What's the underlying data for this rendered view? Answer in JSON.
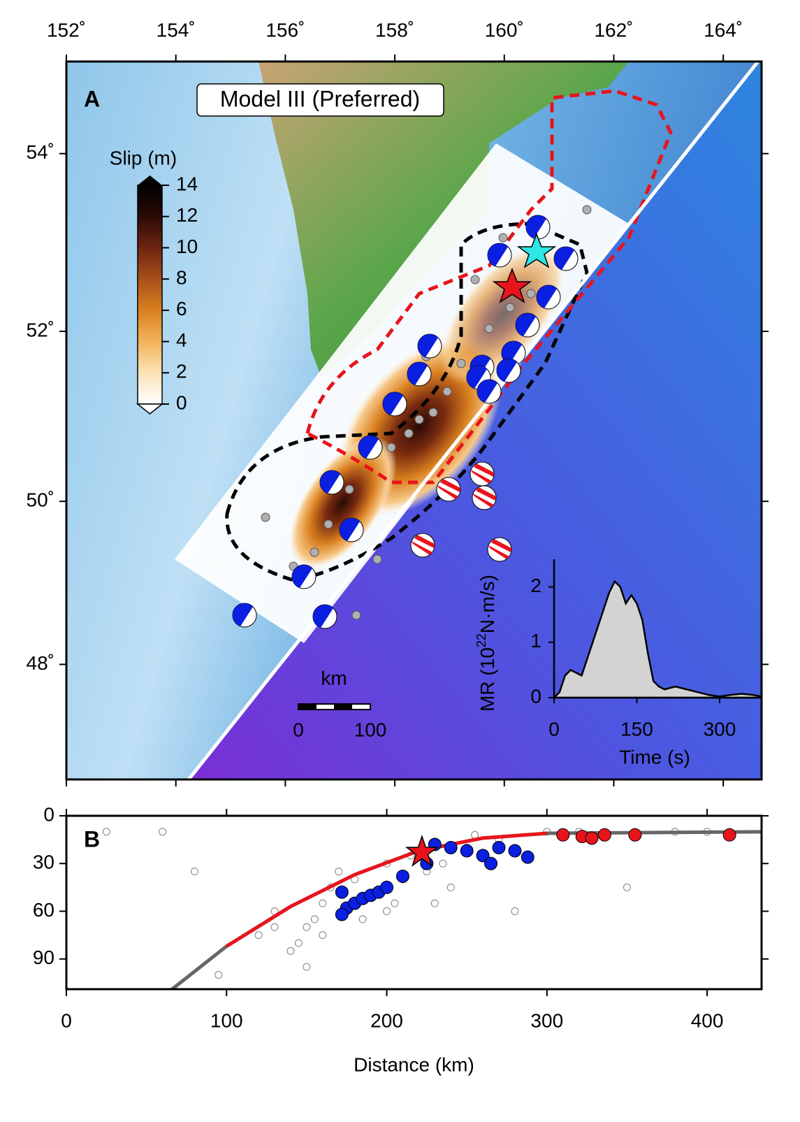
{
  "map": {
    "panel_label": "A",
    "title": "Model III (Preferred)",
    "lonlim": [
      152,
      164.7
    ],
    "latlim": [
      46.54,
      55.0
    ],
    "lon_ticks": [
      {
        "value": 152,
        "label": "152˚"
      },
      {
        "value": 154,
        "label": "154˚"
      },
      {
        "value": 156,
        "label": "156˚"
      },
      {
        "value": 158,
        "label": "158˚"
      },
      {
        "value": 160,
        "label": "160˚"
      },
      {
        "value": 162,
        "label": "162˚"
      },
      {
        "value": 164,
        "label": "164˚"
      }
    ],
    "lat_ticks": [
      {
        "value": 48,
        "label": "48˚"
      },
      {
        "value": 50,
        "label": "50˚"
      },
      {
        "value": 52,
        "label": "52˚"
      },
      {
        "value": 54,
        "label": "54˚"
      }
    ]
  },
  "colorbar": {
    "title": "Slip (m)",
    "lim": [
      0,
      14
    ],
    "ticks": [
      0,
      2,
      4,
      6,
      8,
      10,
      12,
      14
    ],
    "colors": [
      "#ffffff",
      "#fbe3b8",
      "#f3b35a",
      "#d9801f",
      "#a8501a",
      "#6e2410",
      "#2a0a05",
      "#000000"
    ]
  },
  "scale_bar": {
    "unit": "km",
    "ticks": [
      0,
      100
    ]
  },
  "chart_data": [
    {
      "type": "area",
      "color": "#d3d3d3",
      "x_label": "Time (s)",
      "y_label": [
        "MR (10",
        "22",
        "N·m/s)"
      ],
      "x": [
        0,
        10,
        20,
        30,
        40,
        50,
        60,
        70,
        80,
        90,
        100,
        110,
        120,
        130,
        140,
        150,
        160,
        170,
        180,
        190,
        200,
        220,
        240,
        260,
        280,
        300,
        320,
        340,
        360,
        376
      ],
      "values": [
        0,
        0.1,
        0.4,
        0.5,
        0.45,
        0.4,
        0.7,
        1.0,
        1.3,
        1.6,
        1.9,
        2.1,
        2.0,
        1.7,
        1.85,
        1.7,
        1.4,
        0.8,
        0.3,
        0.2,
        0.15,
        0.2,
        0.15,
        0.1,
        0.05,
        0.02,
        0.05,
        0.07,
        0.05,
        0.02
      ],
      "xlim": [
        0,
        376
      ],
      "ylim": [
        0,
        2.5
      ],
      "xticks": [
        0,
        150,
        300
      ],
      "yticks": [
        0,
        1,
        2
      ]
    },
    {
      "type": "scatter",
      "panel_label": "B",
      "x_label": "Distance (km)",
      "xlim": [
        0,
        434
      ],
      "ylim": [
        0,
        109
      ],
      "y_inverted": true,
      "xticks": [
        0,
        100,
        200,
        300,
        400
      ],
      "yticks": [
        0,
        30,
        60,
        90
      ],
      "series": [
        {
          "style": "open-circle",
          "color": "#808080",
          "x": [
            25,
            60,
            80,
            95,
            120,
            130,
            140,
            145,
            150,
            155,
            160,
            165,
            170,
            180,
            190,
            200,
            205,
            210,
            215,
            225,
            235,
            240,
            250,
            255,
            260,
            270,
            280,
            300,
            320,
            350,
            380,
            400,
            130,
            150,
            160,
            185,
            200,
            230
          ],
          "y": [
            10,
            10,
            35,
            100,
            75,
            70,
            85,
            80,
            95,
            65,
            55,
            45,
            35,
            40,
            50,
            30,
            55,
            40,
            25,
            35,
            30,
            45,
            20,
            12,
            25,
            15,
            60,
            10,
            10,
            45,
            10,
            10,
            60,
            70,
            75,
            65,
            60,
            55
          ]
        },
        {
          "style": "line",
          "color": "#666666",
          "x": [
            66,
            100,
            140,
            180,
            220,
            260,
            300,
            440
          ],
          "y": [
            109,
            82,
            57,
            37,
            22,
            14,
            11,
            10
          ]
        },
        {
          "style": "line",
          "color": "#e8141c",
          "x": [
            100,
            140,
            180,
            220,
            260,
            300
          ],
          "y": [
            82,
            57,
            37,
            22,
            14,
            11
          ]
        },
        {
          "style": "circle",
          "color": "#0b1fe0",
          "x": [
            172,
            175,
            180,
            185,
            190,
            195,
            200,
            210,
            172,
            230,
            240,
            250,
            260,
            270,
            280,
            288,
            265,
            225
          ],
          "y": [
            48,
            58,
            55,
            52,
            50,
            48,
            45,
            38,
            62,
            18,
            20,
            22,
            25,
            20,
            22,
            26,
            30,
            30
          ]
        },
        {
          "style": "circle",
          "color": "#e8141c",
          "x": [
            310,
            322,
            328,
            336,
            355,
            414
          ],
          "y": [
            12,
            13,
            14,
            12,
            12,
            12
          ]
        },
        {
          "style": "star",
          "color": "#e8141c",
          "x": [
            222
          ],
          "y": [
            23
          ]
        }
      ]
    }
  ]
}
